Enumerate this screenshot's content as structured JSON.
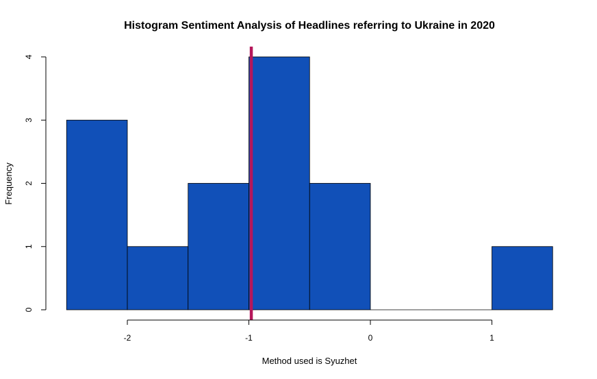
{
  "chart_data": {
    "type": "bar",
    "title": "Histogram Sentiment Analysis of Headlines referring to Ukraine in 2020",
    "xlabel": "Method used is Syuzhet",
    "ylabel": "Frequency",
    "bins": [
      {
        "x0": -2.5,
        "x1": -2.0,
        "count": 3
      },
      {
        "x0": -2.0,
        "x1": -1.5,
        "count": 1
      },
      {
        "x0": -1.5,
        "x1": -1.0,
        "count": 2
      },
      {
        "x0": -1.0,
        "x1": -0.5,
        "count": 4
      },
      {
        "x0": -0.5,
        "x1": 0.0,
        "count": 2
      },
      {
        "x0": 0.0,
        "x1": 0.5,
        "count": 0
      },
      {
        "x0": 0.5,
        "x1": 1.0,
        "count": 0
      },
      {
        "x0": 1.0,
        "x1": 1.5,
        "count": 1
      }
    ],
    "x_ticks": [
      -2,
      -1,
      0,
      1
    ],
    "x_tick_labels": [
      "-2",
      "-1",
      "0",
      "1"
    ],
    "y_ticks": [
      0,
      1,
      2,
      3,
      4
    ],
    "y_tick_labels": [
      "0",
      "1",
      "2",
      "3",
      "4"
    ],
    "xlim": [
      -2.5,
      1.5
    ],
    "ylim": [
      0,
      4
    ],
    "bar_color": "#1150B8",
    "mean_line": {
      "x": -0.98,
      "color": "#B5175A"
    },
    "grid": false
  }
}
